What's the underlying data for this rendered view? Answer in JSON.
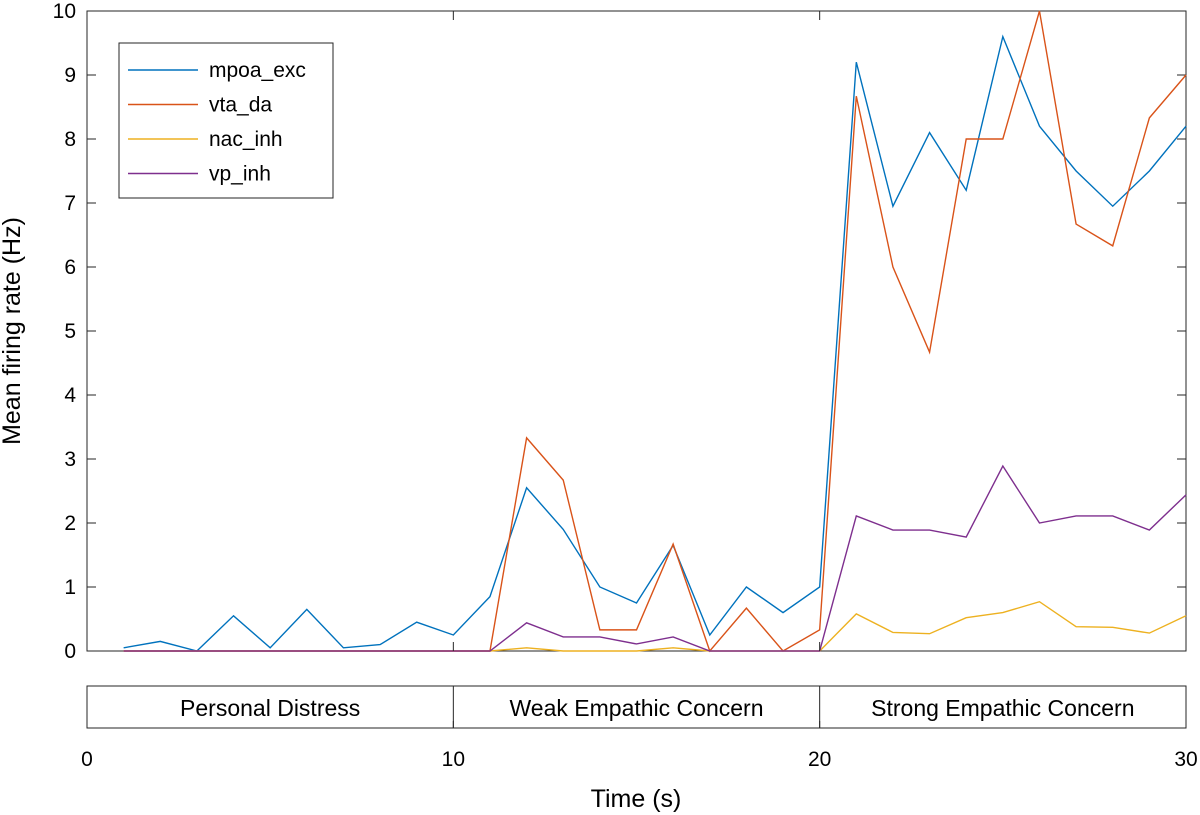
{
  "chart_data": {
    "type": "line",
    "title": "",
    "xlabel": "Time (s)",
    "ylabel": "Mean firing rate (Hz)",
    "xlim": [
      0,
      30
    ],
    "ylim": [
      0,
      10
    ],
    "yticks": [
      0,
      1,
      2,
      3,
      4,
      5,
      6,
      7,
      8,
      9,
      10
    ],
    "xticks": [
      0,
      10,
      20,
      30
    ],
    "grid": false,
    "legend_position": "top-left",
    "x": [
      1,
      2,
      3,
      4,
      5,
      6,
      7,
      8,
      9,
      10,
      11,
      12,
      13,
      14,
      15,
      16,
      17,
      18,
      19,
      20,
      20,
      21,
      22,
      23,
      24,
      25,
      26,
      27,
      28,
      29,
      30
    ],
    "series": [
      {
        "name": "mpoa_exc",
        "color": "#0072BD",
        "values": [
          0.05,
          0.15,
          0.0,
          0.55,
          0.05,
          0.65,
          0.05,
          0.1,
          0.45,
          0.25,
          0.85,
          2.55,
          1.9,
          1.0,
          0.75,
          1.65,
          0.25,
          1.0,
          0.6,
          1.0,
          1.0,
          9.2,
          6.95,
          8.1,
          7.2,
          9.6,
          8.2,
          7.5,
          6.95,
          7.5,
          8.2
        ]
      },
      {
        "name": "vta_da",
        "color": "#D95319",
        "values": [
          0,
          0,
          0,
          0,
          0,
          0,
          0,
          0,
          0,
          0,
          0,
          3.33,
          2.67,
          0.33,
          0.33,
          1.67,
          0.0,
          0.67,
          0.0,
          0.33,
          0.33,
          8.67,
          6.0,
          4.67,
          8.0,
          8.0,
          10.0,
          6.67,
          6.33,
          8.33,
          9.0
        ]
      },
      {
        "name": "nac_inh",
        "color": "#EDB120",
        "values": [
          0,
          0,
          0,
          0,
          0,
          0,
          0,
          0,
          0,
          0,
          0,
          0.05,
          0.0,
          0.0,
          0.0,
          0.05,
          0.0,
          0.0,
          0.0,
          0.0,
          0.0,
          0.58,
          0.29,
          0.27,
          0.52,
          0.6,
          0.77,
          0.38,
          0.37,
          0.28,
          0.55
        ]
      },
      {
        "name": "vp_inh",
        "color": "#7E2F8E",
        "values": [
          0,
          0,
          0,
          0,
          0,
          0,
          0,
          0,
          0,
          0,
          0,
          0.44,
          0.22,
          0.22,
          0.11,
          0.22,
          0.0,
          0.0,
          0.0,
          0.0,
          0.0,
          2.11,
          1.89,
          1.89,
          1.78,
          2.89,
          2.0,
          2.11,
          2.11,
          1.89,
          2.44
        ]
      }
    ],
    "phases": [
      {
        "label": "Personal Distress",
        "start": 0,
        "end": 10
      },
      {
        "label": "Weak Empathic Concern",
        "start": 10,
        "end": 20
      },
      {
        "label": "Strong Empathic Concern",
        "start": 20,
        "end": 30
      }
    ]
  }
}
